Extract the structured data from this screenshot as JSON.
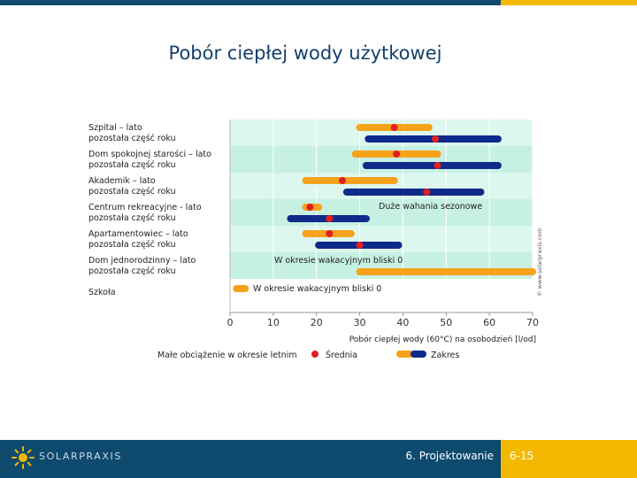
{
  "slide": {
    "title": "Pobór ciepłej wody użytkowej",
    "footer_section": "6. Projektowanie",
    "footer_page": "6-15",
    "logo_text": "SOLARPRAXIS",
    "watermark": "© www.solarpraxis.com"
  },
  "colors": {
    "summer_bar": "#f7a21b",
    "rest_bar": "#0e2a8a",
    "mean_dot": "#e02020",
    "row_stripe_a": "#dcf7ee",
    "row_stripe_b": "#c6f1e2",
    "brand_blue": "#0d4a6e",
    "accent_yellow": "#f5b800"
  },
  "chart_data": {
    "type": "range",
    "xlabel": "Pobór ciepłej wody (60°C) na osobodzień [l/od]",
    "xlim": [
      0,
      70
    ],
    "xticks": [
      0,
      10,
      20,
      30,
      40,
      50,
      60,
      70
    ],
    "grid": "vertical",
    "categories": [
      {
        "label_line1": "Szpital – lato",
        "label_line2": "pozostała część roku",
        "summer": {
          "min": 30,
          "max": 46,
          "mean": 38
        },
        "rest": {
          "min": 32,
          "max": 62,
          "mean": 47.5
        },
        "note": ""
      },
      {
        "label_line1": "Dom spokojnej starości – lato",
        "label_line2": "pozostała część roku",
        "summer": {
          "min": 29,
          "max": 48,
          "mean": 38.5
        },
        "rest": {
          "min": 31.5,
          "max": 62,
          "mean": 48
        },
        "note": ""
      },
      {
        "label_line1": "Akademik – lato",
        "label_line2": "pozostała część roku",
        "summer": {
          "min": 17.5,
          "max": 38,
          "mean": 26
        },
        "rest": {
          "min": 27,
          "max": 58,
          "mean": 45.5
        },
        "note": ""
      },
      {
        "label_line1": "Centrum rekreacyjne - lato",
        "label_line2": "pozostała część roku",
        "summer": {
          "min": 17.5,
          "max": 20.5,
          "mean": 18.5
        },
        "rest": {
          "min": 14,
          "max": 31.5,
          "mean": 23
        },
        "note": "Duże wahania sezonowe"
      },
      {
        "label_line1": "Apartamentowiec – lato",
        "label_line2": "pozostała część roku",
        "summer": {
          "min": 17.5,
          "max": 28,
          "mean": 23
        },
        "rest": {
          "min": 20.5,
          "max": 39,
          "mean": 30
        },
        "note": ""
      },
      {
        "label_line1": "Dom jednorodzinny – lato",
        "label_line2": "pozostała część roku",
        "summer": null,
        "rest": {
          "min": 30,
          "max": 70,
          "mean": null
        },
        "note": "W okresie wakacyjnym bliski 0"
      },
      {
        "label_line1": "Szkoła",
        "label_line2": "",
        "summer": {
          "min": 1.5,
          "max": 3.5,
          "mean": null
        },
        "rest": null,
        "note": "W okresie wakacyjnym bliski 0"
      }
    ],
    "legend": [
      {
        "key": "low_summer",
        "label": "Małe obciążenie w okresie letnim"
      },
      {
        "key": "mean",
        "label": "Średnia"
      },
      {
        "key": "range",
        "label": "Zakres"
      }
    ]
  }
}
